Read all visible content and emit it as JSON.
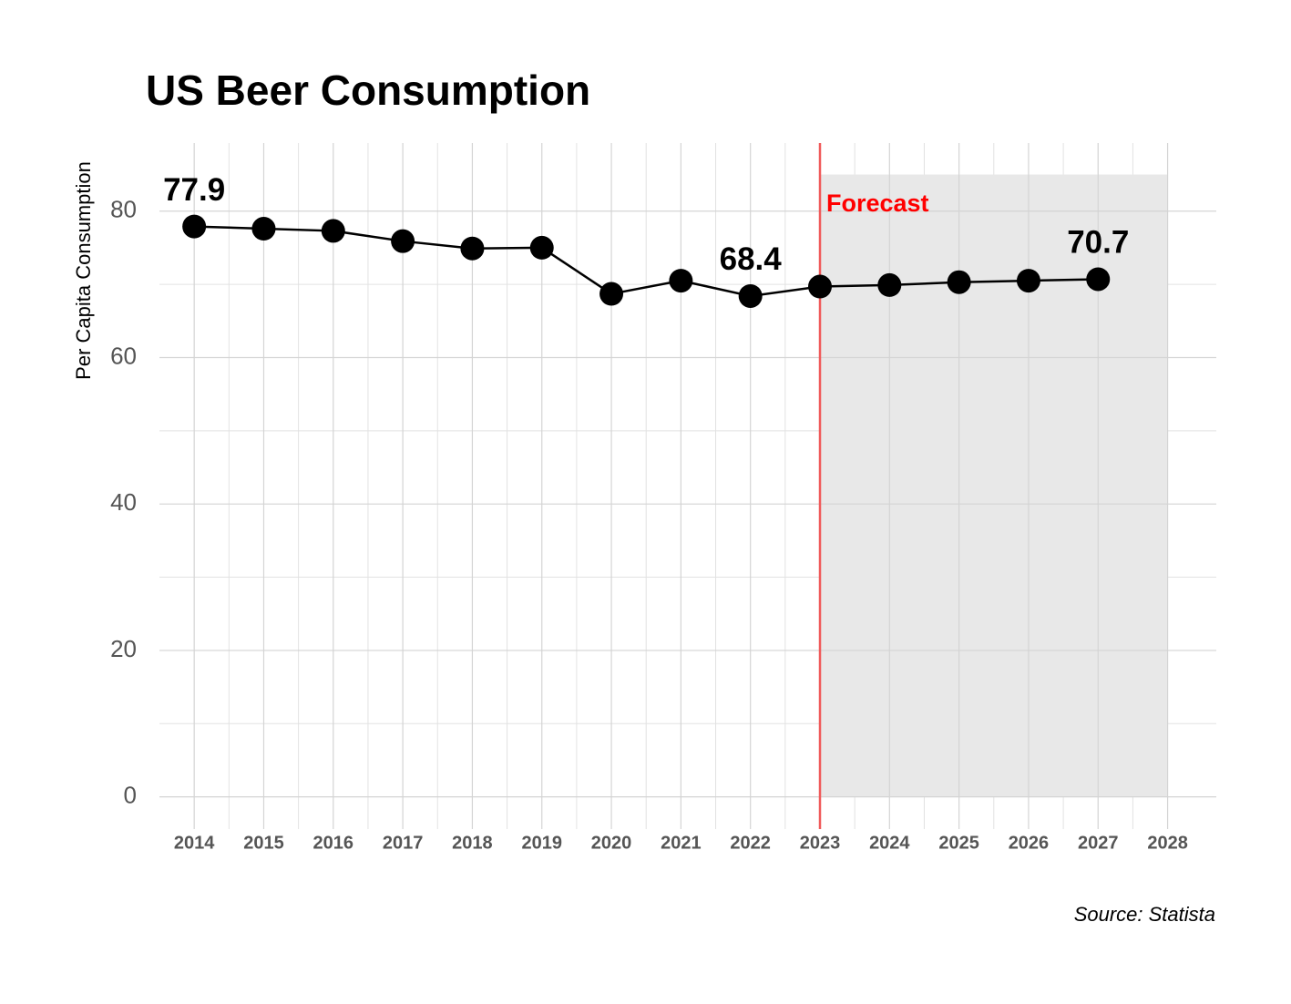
{
  "chart_data": {
    "type": "line",
    "title": "US Beer Consumption",
    "y_label": "Per Capita Consumption",
    "source": "Source: Statista",
    "x": [
      2014,
      2015,
      2016,
      2017,
      2018,
      2019,
      2020,
      2021,
      2022,
      2023,
      2024,
      2025,
      2026,
      2027
    ],
    "values": [
      77.9,
      77.6,
      77.3,
      75.9,
      74.9,
      75.0,
      68.7,
      70.5,
      68.4,
      69.7,
      69.9,
      70.3,
      70.5,
      70.7
    ],
    "value_labels": [
      "77.9",
      null,
      null,
      null,
      null,
      null,
      null,
      null,
      "68.4",
      null,
      null,
      null,
      null,
      "70.7"
    ],
    "color": "#000000",
    "xlim": [
      2013.5,
      2028.7
    ],
    "xticks": [
      2014,
      2015,
      2016,
      2017,
      2018,
      2019,
      2020,
      2021,
      2022,
      2023,
      2024,
      2025,
      2026,
      2027,
      2028
    ],
    "ylim": [
      -4.4,
      89.3
    ],
    "yticks": [
      0,
      20,
      40,
      60,
      80
    ],
    "grid": true,
    "forecast": {
      "label": "Forecast",
      "x_start": 2023,
      "x_end": 2028,
      "y_top": 85,
      "color": "#e8e8e8",
      "line_color": "#f05a5a",
      "label_color": "#ff0000"
    }
  }
}
